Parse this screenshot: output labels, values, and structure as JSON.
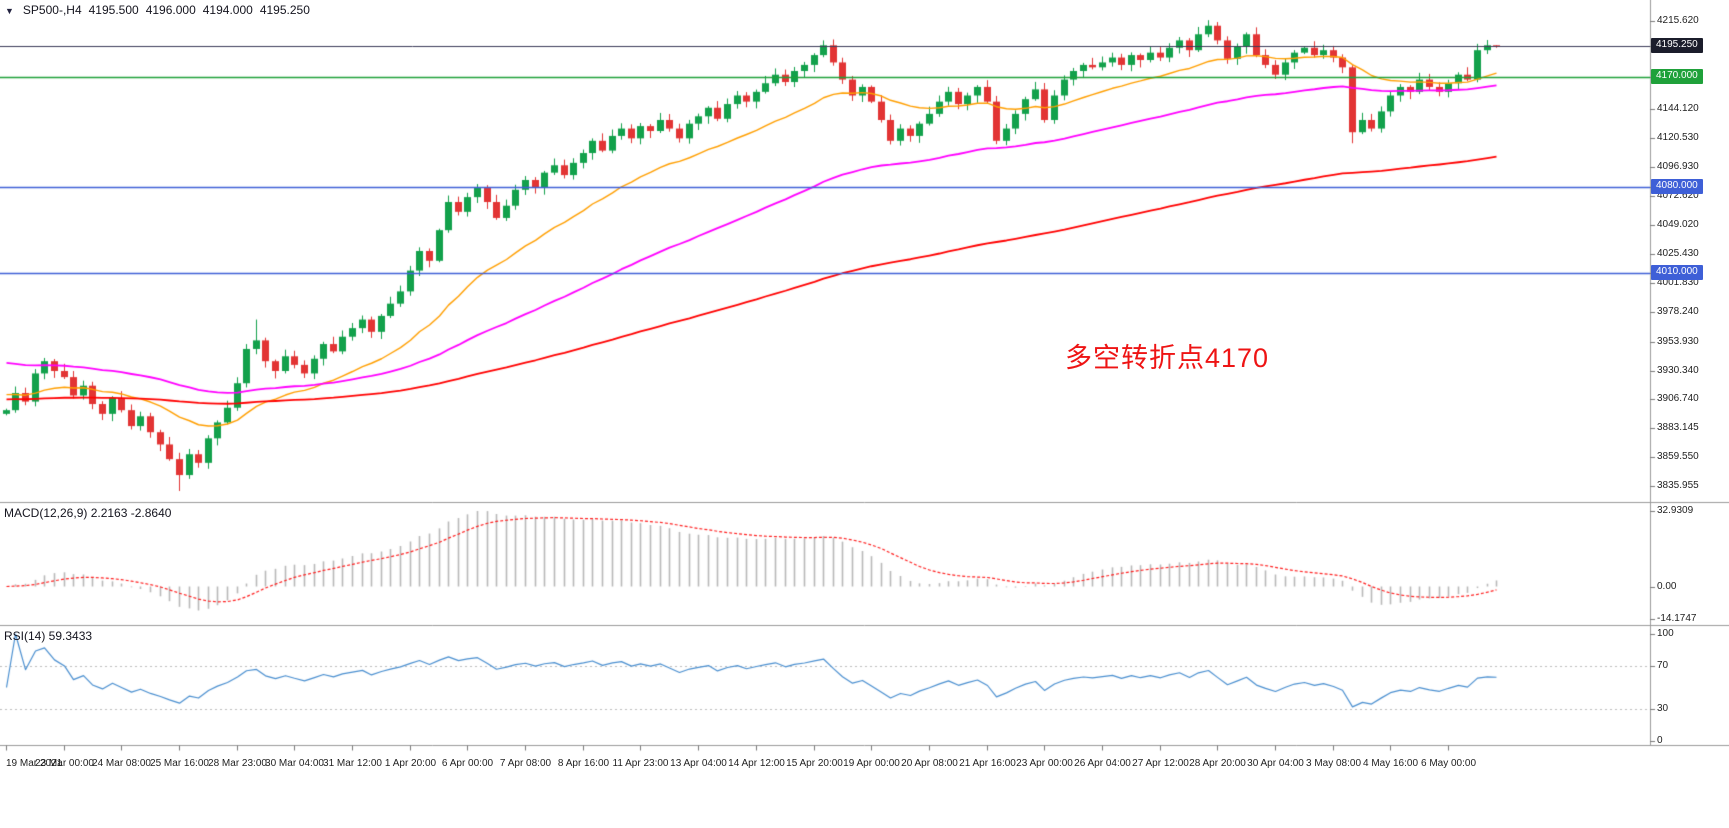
{
  "header": {
    "dropdown_icon": "▼",
    "symbol_timeframe": "SP500-,H4",
    "open": "4195.500",
    "high": "4196.000",
    "low": "4194.000",
    "close": "4195.250"
  },
  "annotation": {
    "text": "多空转折点4170",
    "color": "#ee1414"
  },
  "chart_data": {
    "type": "candlestick",
    "title": "SP500- H4 candlestick chart with MA(fast/mid/slow), MACD and RSI",
    "ylim": [
      3823,
      4233
    ],
    "first_open": 3895,
    "closes": [
      3898,
      3912,
      3905,
      3928,
      3938,
      3930,
      3925,
      3910,
      3918,
      3903,
      3895,
      3908,
      3898,
      3885,
      3893,
      3880,
      3870,
      3858,
      3845,
      3862,
      3855,
      3875,
      3888,
      3900,
      3920,
      3948,
      3955,
      3938,
      3930,
      3942,
      3935,
      3928,
      3940,
      3952,
      3946,
      3958,
      3965,
      3972,
      3962,
      3975,
      3985,
      3995,
      4012,
      4028,
      4020,
      4045,
      4068,
      4060,
      4072,
      4080,
      4068,
      4055,
      4065,
      4078,
      4086,
      4080,
      4092,
      4098,
      4090,
      4100,
      4108,
      4118,
      4110,
      4122,
      4128,
      4120,
      4130,
      4126,
      4135,
      4128,
      4120,
      4132,
      4138,
      4145,
      4136,
      4148,
      4155,
      4150,
      4158,
      4165,
      4172,
      4166,
      4175,
      4180,
      4188,
      4196,
      4182,
      4168,
      4155,
      4162,
      4150,
      4135,
      4118,
      4128,
      4122,
      4132,
      4140,
      4150,
      4158,
      4148,
      4155,
      4162,
      4150,
      4118,
      4128,
      4140,
      4152,
      4160,
      4135,
      4155,
      4168,
      4175,
      4180,
      4178,
      4182,
      4186,
      4180,
      4188,
      4184,
      4190,
      4186,
      4194,
      4200,
      4192,
      4205,
      4212,
      4200,
      4185,
      4195,
      4205,
      4188,
      4180,
      4172,
      4182,
      4190,
      4194,
      4188,
      4192,
      4186,
      4178,
      4125,
      4135,
      4128,
      4142,
      4155,
      4162,
      4158,
      4168,
      4162,
      4158,
      4165,
      4172,
      4168,
      4192,
      4196,
      4195.25
    ],
    "extremes": {
      "18": {
        "low": 3832
      },
      "26": {
        "high": 3972
      },
      "85": {
        "high": 4200
      },
      "125": {
        "high": 4216.5
      },
      "126": {
        "high": 4215
      },
      "140": {
        "low": 4116
      },
      "155": {
        "high": 4196,
        "low": 4194
      }
    },
    "up_color": "#12a14b",
    "down_color": "#e23434",
    "y_tick_labels": [
      "4215.620",
      "4144.120",
      "4120.530",
      "4096.930",
      "4072.620",
      "4049.020",
      "4025.430",
      "4001.830",
      "3978.240",
      "3953.930",
      "3930.340",
      "3906.740",
      "3883.145",
      "3859.550",
      "3835.955"
    ],
    "x_tick_labels": [
      "19 Mar 2021",
      "23 Mar 00:00",
      "24 Mar 08:00",
      "25 Mar 16:00",
      "28 Mar 23:00",
      "30 Mar 04:00",
      "31 Mar 12:00",
      "1 Apr 20:00",
      "6 Apr 00:00",
      "7 Apr 08:00",
      "8 Apr 16:00",
      "11 Apr 23:00",
      "13 Apr 04:00",
      "14 Apr 12:00",
      "15 Apr 20:00",
      "19 Apr 00:00",
      "20 Apr 08:00",
      "21 Apr 16:00",
      "23 Apr 00:00",
      "26 Apr 04:00",
      "27 Apr 12:00",
      "28 Apr 20:00",
      "30 Apr 04:00",
      "3 May 08:00",
      "4 May 16:00",
      "6 May 00:00"
    ],
    "hlines": [
      {
        "price": 4170.0,
        "label": "4170.000",
        "color": "#1fa13a",
        "badge_bg": "#1fa13a",
        "badge_fg": "#ffffff"
      },
      {
        "price": 4080.0,
        "label": "4080.000",
        "color": "#3e5fd7",
        "badge_bg": "#3e5fd7",
        "badge_fg": "#ffffff"
      },
      {
        "price": 4010.0,
        "label": "4010.000",
        "color": "#3e5fd7",
        "badge_bg": "#3e5fd7",
        "badge_fg": "#ffffff"
      }
    ],
    "current_price": {
      "price": 4195.25,
      "label": "4195.250",
      "line_color": "#3a3a58",
      "badge_bg": "#1b1d2b",
      "badge_fg": "#ffffff"
    },
    "moving_averages": [
      {
        "name": "ma-fast",
        "period": 20,
        "seed": 3912,
        "color": "#ff9f00",
        "width": 1.4
      },
      {
        "name": "ma-mid",
        "period": 60,
        "seed": 3938,
        "color": "#ff00ff",
        "width": 1.8
      },
      {
        "name": "ma-slow",
        "period": 150,
        "seed": 3907,
        "color": "#ff0000",
        "width": 1.8
      }
    ],
    "indicators": {
      "macd": {
        "label": "MACD(12,26,9) 2.2163 -2.8640",
        "fast": 12,
        "slow": 26,
        "signal": 9,
        "range": [
          -14.1747,
          32.9309
        ],
        "scale_labels": [
          "32.9309",
          "0.00",
          "-14.1747"
        ],
        "histogram_color": "#b9b9b9",
        "signal_color": "#ff2020"
      },
      "rsi": {
        "label": "RSI(14) 59.3433",
        "period": 14,
        "range": [
          0,
          100
        ],
        "scale_labels": [
          "100",
          "70",
          "30",
          "0"
        ],
        "levels": [
          70,
          30
        ],
        "line_color": "#4a8fd0",
        "current": 59.3433
      }
    }
  }
}
